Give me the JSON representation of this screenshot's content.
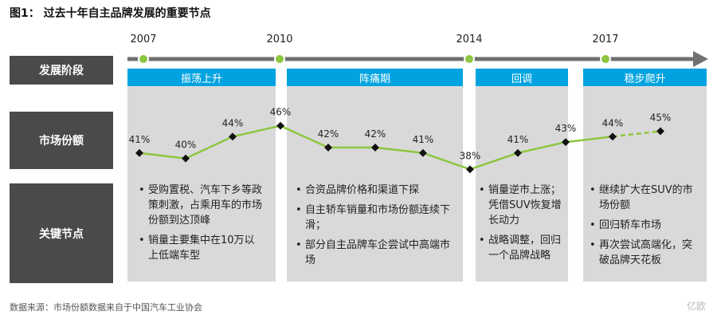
{
  "title": "图1：   过去十年自主品牌发展的重要节点",
  "row_labels": {
    "stage": "发展阶段",
    "share": "市场份额",
    "milestones": "关键节点"
  },
  "years": [
    "2007",
    "2010",
    "2014",
    "2017"
  ],
  "phases": [
    "振荡上升",
    "阵痛期",
    "回调",
    "稳步爬升"
  ],
  "milestones": [
    [
      "受购置税、汽车下乡等政策刺激，占乘用车的市场份额到达顶峰",
      "销量主要集中在10万以上低端车型"
    ],
    [
      "合资品牌价格和渠道下探",
      "自主轿车销量和市场份额连续下滑；",
      "部分自主品牌车企尝试中高端市场"
    ],
    [
      "销量逆市上涨；凭借SUV恢复增长动力",
      "战略调整，回归一个品牌战略"
    ],
    [
      "继续扩大在SUV的市场份额",
      "回归轿车市场",
      "再次尝试高端化，突破品牌天花板"
    ]
  ],
  "source": "数据来源：市场份额数据来自于中国汽车工业协会",
  "watermark": "亿欧",
  "chart_data": {
    "type": "line",
    "title": "过去十年自主品牌发展的重要节点",
    "ylabel": "市场份额",
    "unit": "%",
    "values": [
      41,
      40,
      44,
      46,
      42,
      42,
      41,
      38,
      41,
      43,
      44,
      45
    ],
    "labels": [
      "41%",
      "40%",
      "44%",
      "46%",
      "42%",
      "42%",
      "41%",
      "38%",
      "41%",
      "43%",
      "44%",
      "45%"
    ],
    "projected_from_index": 10,
    "ylim": [
      36,
      48
    ],
    "grid": false,
    "legend": "none",
    "colors": {
      "line": "#8dc63f",
      "marker": "#111111",
      "year_dot": "#8dc63f",
      "axis": "#707070",
      "phase_head": "#00a3e0",
      "panel": "#d9d9d9",
      "row_label": "#4a4a4a"
    }
  }
}
